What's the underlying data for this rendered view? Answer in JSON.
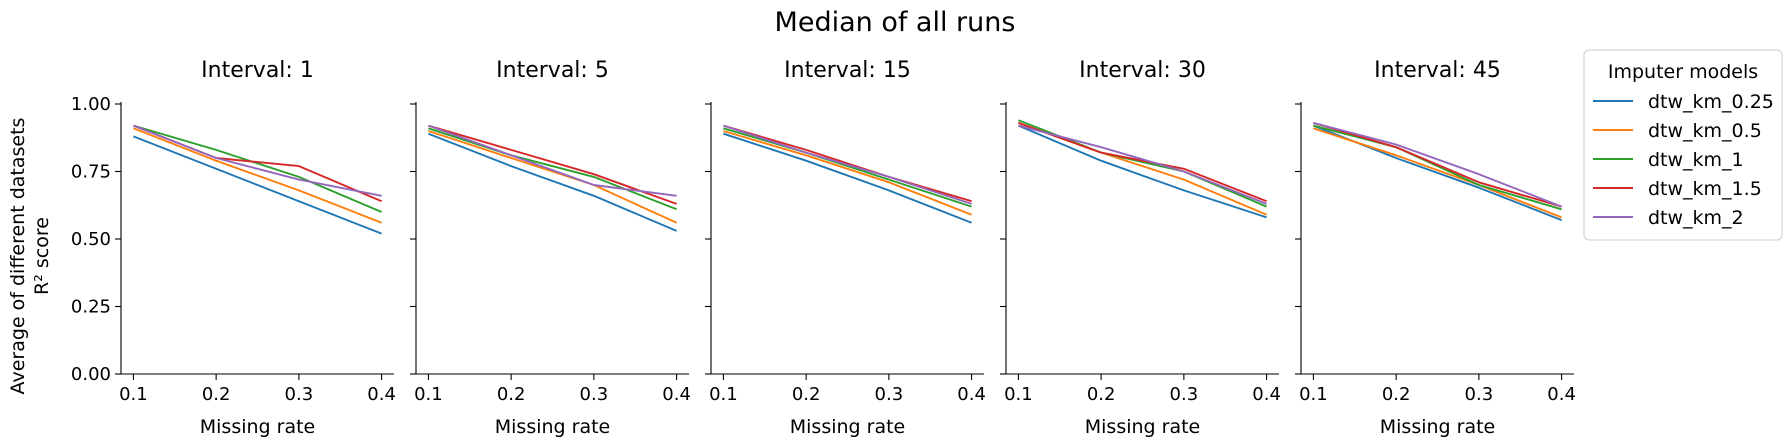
{
  "chart_data": {
    "type": "line",
    "title": "Median of all runs",
    "ylabel_line1": "Average of different datasets",
    "ylabel_line2": "R² score",
    "xlabel": "Missing rate",
    "x": [
      0.1,
      0.2,
      0.3,
      0.4
    ],
    "xticks": [
      "0.1",
      "0.2",
      "0.3",
      "0.4"
    ],
    "yticks": [
      "0.00",
      "0.25",
      "0.50",
      "0.75",
      "1.00"
    ],
    "ylim": [
      0,
      1
    ],
    "xlim": [
      0.085,
      0.415
    ],
    "grid": false,
    "legend": {
      "title": "Imputer models",
      "placement": "upper right, outside plot area",
      "entries": [
        "dtw_km_0.25",
        "dtw_km_0.5",
        "dtw_km_1",
        "dtw_km_1.5",
        "dtw_km_2"
      ],
      "colors": [
        "#1f77b4",
        "#ff7f0e",
        "#2ca02c",
        "#d62728",
        "#9467bd"
      ]
    },
    "panels": [
      {
        "title": "Interval: 1",
        "series": [
          {
            "name": "dtw_km_0.25",
            "values": [
              0.88,
              0.76,
              0.64,
              0.52
            ]
          },
          {
            "name": "dtw_km_0.5",
            "values": [
              0.91,
              0.79,
              0.68,
              0.56
            ]
          },
          {
            "name": "dtw_km_1",
            "values": [
              0.92,
              0.83,
              0.73,
              0.6
            ]
          },
          {
            "name": "dtw_km_1.5",
            "values": [
              0.92,
              0.8,
              0.77,
              0.64
            ]
          },
          {
            "name": "dtw_km_2",
            "values": [
              0.92,
              0.8,
              0.72,
              0.66
            ]
          }
        ]
      },
      {
        "title": "Interval: 5",
        "series": [
          {
            "name": "dtw_km_0.25",
            "values": [
              0.89,
              0.77,
              0.66,
              0.53
            ]
          },
          {
            "name": "dtw_km_0.5",
            "values": [
              0.9,
              0.8,
              0.7,
              0.56
            ]
          },
          {
            "name": "dtw_km_1",
            "values": [
              0.91,
              0.81,
              0.73,
              0.61
            ]
          },
          {
            "name": "dtw_km_1.5",
            "values": [
              0.92,
              0.83,
              0.74,
              0.63
            ]
          },
          {
            "name": "dtw_km_2",
            "values": [
              0.92,
              0.81,
              0.7,
              0.66
            ]
          }
        ]
      },
      {
        "title": "Interval: 15",
        "series": [
          {
            "name": "dtw_km_0.25",
            "values": [
              0.89,
              0.79,
              0.68,
              0.56
            ]
          },
          {
            "name": "dtw_km_0.5",
            "values": [
              0.9,
              0.81,
              0.71,
              0.59
            ]
          },
          {
            "name": "dtw_km_1",
            "values": [
              0.91,
              0.82,
              0.72,
              0.62
            ]
          },
          {
            "name": "dtw_km_1.5",
            "values": [
              0.92,
              0.83,
              0.73,
              0.64
            ]
          },
          {
            "name": "dtw_km_2",
            "values": [
              0.92,
              0.82,
              0.73,
              0.63
            ]
          }
        ]
      },
      {
        "title": "Interval: 30",
        "series": [
          {
            "name": "dtw_km_0.25",
            "values": [
              0.92,
              0.79,
              0.68,
              0.58
            ]
          },
          {
            "name": "dtw_km_0.5",
            "values": [
              0.93,
              0.82,
              0.72,
              0.59
            ]
          },
          {
            "name": "dtw_km_1",
            "values": [
              0.94,
              0.82,
              0.75,
              0.62
            ]
          },
          {
            "name": "dtw_km_1.5",
            "values": [
              0.93,
              0.82,
              0.76,
              0.64
            ]
          },
          {
            "name": "dtw_km_2",
            "values": [
              0.92,
              0.84,
              0.75,
              0.63
            ]
          }
        ]
      },
      {
        "title": "Interval: 45",
        "series": [
          {
            "name": "dtw_km_0.25",
            "values": [
              0.92,
              0.8,
              0.69,
              0.57
            ]
          },
          {
            "name": "dtw_km_0.5",
            "values": [
              0.91,
              0.81,
              0.7,
              0.58
            ]
          },
          {
            "name": "dtw_km_1",
            "values": [
              0.92,
              0.84,
              0.7,
              0.61
            ]
          },
          {
            "name": "dtw_km_1.5",
            "values": [
              0.93,
              0.84,
              0.71,
              0.62
            ]
          },
          {
            "name": "dtw_km_2",
            "values": [
              0.93,
              0.85,
              0.74,
              0.62
            ]
          }
        ]
      }
    ]
  }
}
